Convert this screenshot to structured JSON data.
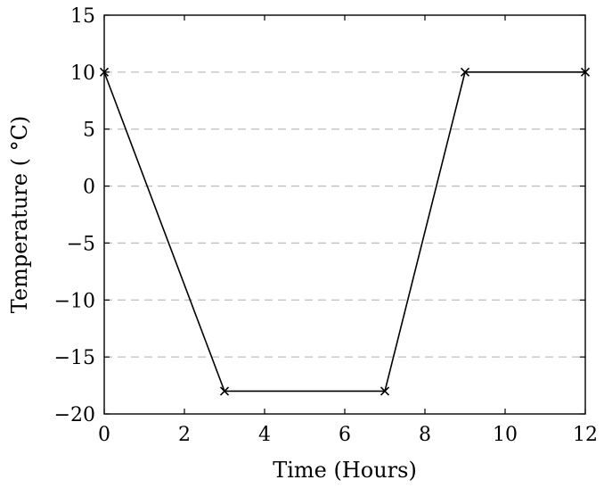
{
  "chart_data": {
    "type": "line",
    "title": "",
    "xlabel": "Time (Hours)",
    "ylabel": "Temperature ( °C)",
    "xlim": [
      0,
      12
    ],
    "ylim": [
      -20,
      15
    ],
    "x_ticks": [
      0,
      2,
      4,
      6,
      8,
      10,
      12
    ],
    "y_ticks": [
      15,
      10,
      5,
      0,
      -5,
      -10,
      -15,
      -20
    ],
    "x_tick_labels": [
      "0",
      "2",
      "4",
      "6",
      "8",
      "10",
      "12"
    ],
    "y_tick_labels": [
      "15",
      "10",
      "5",
      "0",
      "−5",
      "−10",
      "−15",
      "−20"
    ],
    "grid": {
      "horizontal": true,
      "vertical": false,
      "style": "dashed",
      "color": "#bfbfbf"
    },
    "series": [
      {
        "marker": "x",
        "color": "#000000",
        "x": [
          0,
          3,
          7,
          9,
          12
        ],
        "y": [
          10,
          -18,
          -18,
          10,
          10
        ]
      }
    ]
  }
}
